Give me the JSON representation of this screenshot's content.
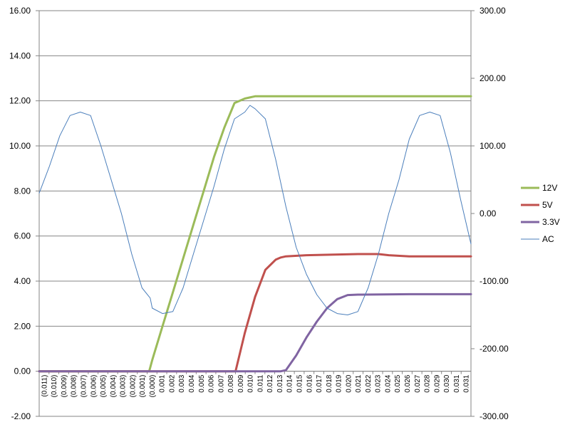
{
  "chart_data": {
    "type": "line",
    "title": "",
    "xlabel": "",
    "ylabel": "",
    "y_left": {
      "min": -2,
      "max": 16,
      "step": 2,
      "tick_labels": [
        "-2.00",
        "0.00",
        "2.00",
        "4.00",
        "6.00",
        "8.00",
        "10.00",
        "12.00",
        "14.00",
        "16.00"
      ]
    },
    "y_right": {
      "min": -300,
      "max": 300,
      "step": 100,
      "tick_labels": [
        "-300.00",
        "-200.00",
        "-100.00",
        "0.00",
        "100.00",
        "200.00",
        "300.00"
      ]
    },
    "x_tick_labels": [
      "(0.011)",
      "(0.010)",
      "(0.009)",
      "(0.008)",
      "(0.007)",
      "(0.006)",
      "(0.005)",
      "(0.004)",
      "(0.003)",
      "(0.002)",
      "(0.001)",
      "(0.000)",
      "0.001",
      "0.002",
      "0.003",
      "0.004",
      "0.005",
      "0.006",
      "0.007",
      "0.008",
      "0.009",
      "0.010",
      "0.011",
      "0.012",
      "0.013",
      "0.014",
      "0.015",
      "0.016",
      "0.017",
      "0.018",
      "0.019",
      "0.020",
      "0.021",
      "0.022",
      "0.023",
      "0.024",
      "0.025",
      "0.026",
      "0.027",
      "0.028",
      "0.029",
      "0.030",
      "0.031",
      "0.031"
    ],
    "x_range": [
      -0.011,
      0.031
    ],
    "grid": true,
    "legend_position": "right",
    "series": [
      {
        "name": "12V",
        "axis": "left",
        "color": "#9bbb59",
        "width": 3,
        "x": [
          -0.011,
          -0.0015,
          -0.0003,
          0.0,
          0.001,
          0.002,
          0.003,
          0.004,
          0.005,
          0.006,
          0.007,
          0.008,
          0.009,
          0.0095,
          0.01,
          0.0105,
          0.011,
          0.012,
          0.014,
          0.016,
          0.02,
          0.025,
          0.03,
          0.031
        ],
        "y": [
          0.0,
          0.0,
          0.0,
          0.5,
          2.0,
          3.5,
          5.0,
          6.5,
          8.0,
          9.5,
          10.8,
          11.9,
          12.1,
          12.15,
          12.2,
          12.2,
          12.2,
          12.2,
          12.2,
          12.2,
          12.2,
          12.2,
          12.2,
          12.2
        ]
      },
      {
        "name": "5V",
        "axis": "left",
        "color": "#c0504d",
        "width": 3,
        "x": [
          -0.011,
          0.0081,
          0.009,
          0.01,
          0.011,
          0.012,
          0.0125,
          0.013,
          0.015,
          0.02,
          0.022,
          0.023,
          0.025,
          0.03,
          0.031
        ],
        "y": [
          0.0,
          0.0,
          1.7,
          3.3,
          4.5,
          4.95,
          5.05,
          5.1,
          5.15,
          5.2,
          5.2,
          5.15,
          5.1,
          5.1,
          5.1
        ],
        "x_extra": []
      },
      {
        "name": "3.3V",
        "axis": "left",
        "color": "#8064a2",
        "width": 3,
        "x": [
          -0.011,
          0.0105,
          0.0125,
          0.013,
          0.014,
          0.015,
          0.016,
          0.017,
          0.018,
          0.019,
          0.02,
          0.025,
          0.03,
          0.031
        ],
        "y": [
          0.0,
          0.0,
          0.0,
          0.05,
          0.7,
          1.5,
          2.2,
          2.8,
          3.2,
          3.38,
          3.4,
          3.42,
          3.42,
          3.42
        ]
      },
      {
        "name": "AC",
        "axis": "right",
        "color": "#4a7ebb",
        "width": 1,
        "x": [
          -0.011,
          -0.01,
          -0.009,
          -0.008,
          -0.007,
          -0.006,
          -0.005,
          -0.004,
          -0.003,
          -0.002,
          -0.001,
          -0.0002,
          0.0,
          0.001,
          0.002,
          0.003,
          0.004,
          0.005,
          0.006,
          0.007,
          0.008,
          0.009,
          0.0095,
          0.01,
          0.011,
          0.012,
          0.013,
          0.014,
          0.015,
          0.016,
          0.017,
          0.018,
          0.019,
          0.02,
          0.021,
          0.022,
          0.023,
          0.024,
          0.025,
          0.026,
          0.027,
          0.028,
          0.029,
          0.03,
          0.031
        ],
        "y": [
          30,
          70,
          115,
          145,
          150,
          145,
          100,
          50,
          0,
          -60,
          -110,
          -125,
          -140,
          -148,
          -145,
          -110,
          -60,
          -10,
          40,
          95,
          140,
          150,
          160,
          155,
          140,
          80,
          10,
          -50,
          -90,
          -120,
          -140,
          -148,
          -150,
          -145,
          -110,
          -60,
          0,
          50,
          110,
          145,
          150,
          145,
          90,
          20,
          -45
        ]
      }
    ]
  }
}
